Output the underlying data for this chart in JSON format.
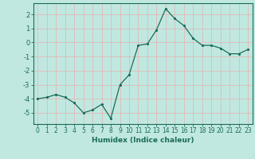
{
  "x": [
    0,
    1,
    2,
    3,
    4,
    5,
    6,
    7,
    8,
    9,
    10,
    11,
    12,
    13,
    14,
    15,
    16,
    17,
    18,
    19,
    20,
    21,
    22,
    23
  ],
  "y": [
    -4.0,
    -3.9,
    -3.7,
    -3.9,
    -4.3,
    -5.0,
    -4.8,
    -4.4,
    -5.4,
    -3.0,
    -2.3,
    -0.2,
    -0.1,
    0.9,
    2.4,
    1.7,
    1.2,
    0.3,
    -0.2,
    -0.2,
    -0.4,
    -0.8,
    -0.8,
    -0.5
  ],
  "xlabel": "Humidex (Indice chaleur)",
  "ylim": [
    -5.8,
    2.8
  ],
  "xlim": [
    -0.5,
    23.5
  ],
  "yticks": [
    -5,
    -4,
    -3,
    -2,
    -1,
    0,
    1,
    2
  ],
  "xticks": [
    0,
    1,
    2,
    3,
    4,
    5,
    6,
    7,
    8,
    9,
    10,
    11,
    12,
    13,
    14,
    15,
    16,
    17,
    18,
    19,
    20,
    21,
    22,
    23
  ],
  "line_color": "#1a6b5a",
  "marker_color": "#1a6b5a",
  "bg_color": "#c0e8e0",
  "grid_color": "#e8b0b0",
  "axes_color": "#1a6b5a",
  "label_fontsize": 6.0,
  "tick_fontsize": 5.5,
  "xlabel_fontsize": 6.5
}
